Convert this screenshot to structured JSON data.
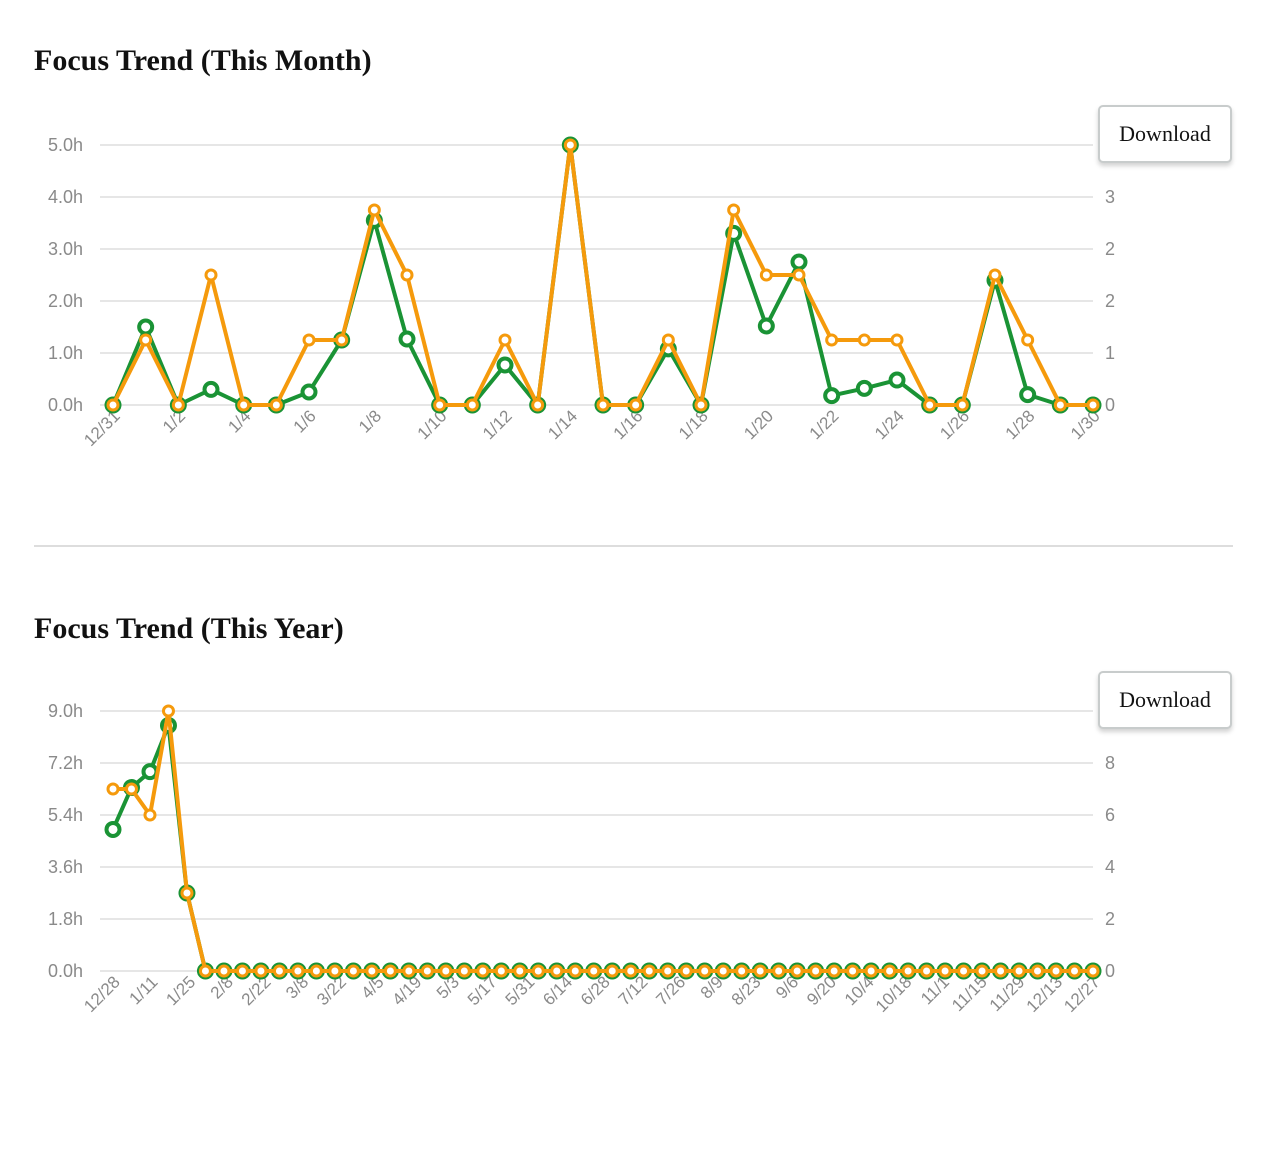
{
  "charts": [
    {
      "section_title": "Focus Trend (This Month)",
      "download_label": "Download"
    },
    {
      "section_title": "Focus Trend (This Year)",
      "download_label": "Download"
    }
  ],
  "colors": {
    "series_green": "#1a9335",
    "series_orange": "#f59a0c",
    "grid": "#dddddd",
    "axis_text": "#8a8a8a"
  },
  "chart_data": [
    {
      "type": "line",
      "title": "Focus Trend (This Month)",
      "x": [
        "12/31",
        "1/1",
        "1/2",
        "1/3",
        "1/4",
        "1/5",
        "1/6",
        "1/7",
        "1/8",
        "1/9",
        "1/10",
        "1/11",
        "1/12",
        "1/13",
        "1/14",
        "1/15",
        "1/16",
        "1/17",
        "1/18",
        "1/19",
        "1/20",
        "1/21",
        "1/22",
        "1/23",
        "1/24",
        "1/25",
        "1/26",
        "1/27",
        "1/28",
        "1/29",
        "1/30"
      ],
      "x_tick_labels": [
        "12/31",
        "1/2",
        "1/4",
        "1/6",
        "1/8",
        "1/10",
        "1/12",
        "1/14",
        "1/16",
        "1/18",
        "1/20",
        "1/22",
        "1/24",
        "1/26",
        "1/28",
        "1/30"
      ],
      "y_left": {
        "ticks": [
          "0.0h",
          "1.0h",
          "2.0h",
          "3.0h",
          "4.0h",
          "5.0h"
        ],
        "ylim": [
          0,
          5
        ]
      },
      "y_right": {
        "ticks": [
          "0",
          "1",
          "2",
          "2",
          "3"
        ],
        "ylim": [
          0,
          3.6
        ]
      },
      "grid": true,
      "series": [
        {
          "axis": "left",
          "color": "#1a9335",
          "values": [
            0,
            1.5,
            0,
            0.3,
            0,
            0,
            0.25,
            1.25,
            3.55,
            1.27,
            0,
            0,
            0.77,
            0,
            5.0,
            0,
            0,
            1.08,
            0,
            3.3,
            1.52,
            2.75,
            0.18,
            0.32,
            0.48,
            0,
            0,
            2.4,
            0.2,
            0,
            0
          ]
        },
        {
          "axis": "right",
          "color": "#f59a0c",
          "values": [
            0,
            0.9,
            0,
            1.8,
            0,
            0,
            0.9,
            0.9,
            2.7,
            1.8,
            0,
            0,
            0.9,
            0,
            3.6,
            0,
            0,
            0.9,
            0,
            2.7,
            1.8,
            1.8,
            0.9,
            0.9,
            0.9,
            0,
            0,
            1.8,
            0.9,
            0,
            0
          ]
        }
      ]
    },
    {
      "type": "line",
      "title": "Focus Trend (This Year)",
      "x_tick_labels": [
        "12/28",
        "1/11",
        "1/25",
        "2/8",
        "2/22",
        "3/8",
        "3/22",
        "4/5",
        "4/19",
        "5/3",
        "5/17",
        "5/31",
        "6/14",
        "6/28",
        "7/12",
        "7/26",
        "8/9",
        "8/23",
        "9/6",
        "9/20",
        "10/4",
        "10/18",
        "11/1",
        "11/15",
        "11/29",
        "12/13",
        "12/27"
      ],
      "y_left": {
        "ticks": [
          "0.0h",
          "1.8h",
          "3.6h",
          "5.4h",
          "7.2h",
          "9.0h"
        ],
        "ylim": [
          0,
          9
        ]
      },
      "y_right": {
        "ticks": [
          "0",
          "2",
          "4",
          "6",
          "8"
        ],
        "ylim": [
          0,
          10
        ]
      },
      "grid": true,
      "series": [
        {
          "axis": "left",
          "color": "#1a9335",
          "values": [
            4.9,
            6.35,
            6.9,
            8.5,
            2.7,
            0,
            0,
            0,
            0,
            0,
            0,
            0,
            0,
            0,
            0,
            0,
            0,
            0,
            0,
            0,
            0,
            0,
            0,
            0,
            0,
            0,
            0,
            0,
            0,
            0,
            0,
            0,
            0,
            0,
            0,
            0,
            0,
            0,
            0,
            0,
            0,
            0,
            0,
            0,
            0,
            0,
            0,
            0,
            0,
            0,
            0,
            0,
            0,
            0
          ]
        },
        {
          "axis": "right",
          "color": "#f59a0c",
          "values": [
            7,
            7,
            6,
            10,
            3,
            0,
            0,
            0,
            0,
            0,
            0,
            0,
            0,
            0,
            0,
            0,
            0,
            0,
            0,
            0,
            0,
            0,
            0,
            0,
            0,
            0,
            0,
            0,
            0,
            0,
            0,
            0,
            0,
            0,
            0,
            0,
            0,
            0,
            0,
            0,
            0,
            0,
            0,
            0,
            0,
            0,
            0,
            0,
            0,
            0,
            0,
            0,
            0,
            0
          ]
        }
      ]
    }
  ]
}
